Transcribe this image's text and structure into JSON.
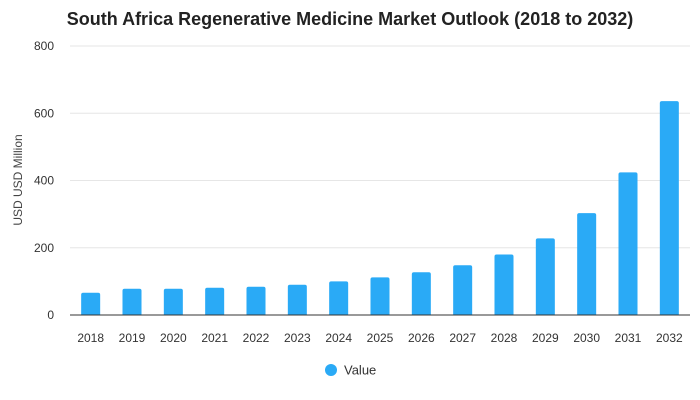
{
  "colors": {
    "bar": "#2aaaf6",
    "grid": "#e6e6e6",
    "axis": "#333333",
    "background": "#ffffff"
  },
  "chart_data": {
    "type": "bar",
    "title": "South Africa Regenerative Medicine Market Outlook (2018 to 2032)",
    "xlabel": "",
    "ylabel": "USD USD Million",
    "categories": [
      "2018",
      "2019",
      "2020",
      "2021",
      "2022",
      "2023",
      "2024",
      "2025",
      "2026",
      "2027",
      "2028",
      "2029",
      "2030",
      "2031",
      "2032"
    ],
    "series": [
      {
        "name": "Value",
        "values": [
          66,
          78,
          78,
          81,
          84,
          90,
          100,
          112,
          127,
          148,
          180,
          228,
          303,
          424,
          636
        ]
      }
    ],
    "ylim": [
      0,
      800
    ],
    "yticks": [
      0,
      200,
      400,
      600,
      800
    ],
    "grid": true,
    "legend_position": "bottom"
  }
}
